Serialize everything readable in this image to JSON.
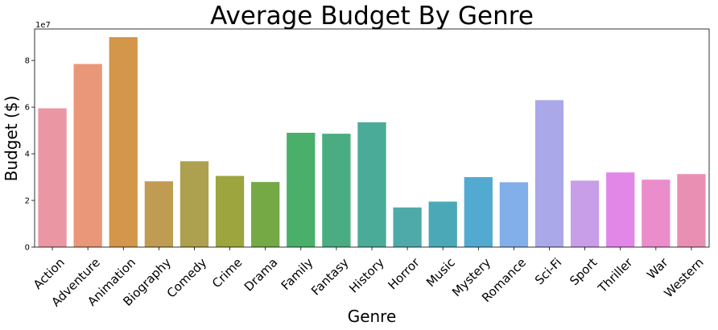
{
  "chart_data": {
    "type": "bar",
    "title": "Average Budget By Genre",
    "xlabel": "Genre",
    "ylabel": "Budget ($)",
    "y_multiplier_label": "1e7",
    "y_tick_labels": [
      "0",
      "2",
      "4",
      "6",
      "8"
    ],
    "ylim": [
      0,
      93500000
    ],
    "grid": false,
    "categories": [
      "Action",
      "Adventure",
      "Animation",
      "Biography",
      "Comedy",
      "Crime",
      "Drama",
      "Family",
      "Fantasy",
      "History",
      "Horror",
      "Music",
      "Mystery",
      "Romance",
      "Sci-Fi",
      "Sport",
      "Thriller",
      "War",
      "Western"
    ],
    "values": [
      59500000,
      78500000,
      90000000,
      28200000,
      36800000,
      30500000,
      27900000,
      49000000,
      48600000,
      53500000,
      17000000,
      19500000,
      30000000,
      27800000,
      63000000,
      28500000,
      32000000,
      28900000,
      31300000
    ],
    "colors": [
      "#ea96a3",
      "#e99778",
      "#d3964a",
      "#c09b52",
      "#adA04e",
      "#9ca53e",
      "#74a946",
      "#4aaf6a",
      "#4aad82",
      "#4aab98",
      "#4daaa9",
      "#4ba9b7",
      "#53aad0",
      "#82aee9",
      "#aba8ea",
      "#c89ee9",
      "#e286e8",
      "#ea8dca",
      "#e98fb4"
    ]
  }
}
